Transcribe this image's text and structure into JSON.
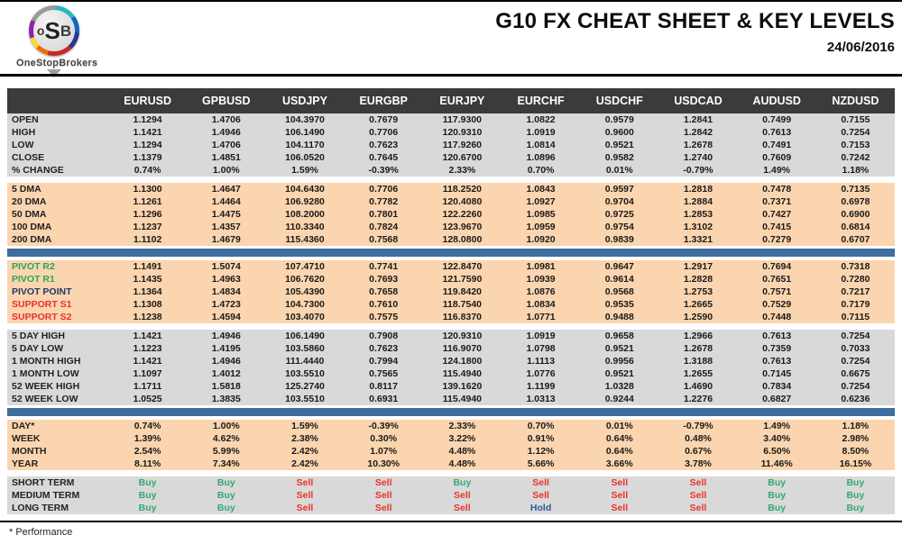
{
  "page": {
    "title": "G10 FX CHEAT SHEET & KEY LEVELS",
    "date": "24/06/2016",
    "footnote": "* Performance"
  },
  "logo": {
    "monogram_o": "o",
    "monogram_s": "S",
    "monogram_b": "B",
    "brand": "OneStopBrokers"
  },
  "colors": {
    "header_bg": "#3b3b3b",
    "section_gray": "#d9d9d9",
    "section_peach": "#fbd5af",
    "divider_blue": "#3e6d9e",
    "buy_green": "#33a873",
    "sell_red": "#ea3429",
    "hold_navy": "#2e5b97",
    "pivot_green": "#27a757",
    "pivot_navy": "#1f3864",
    "support_red": "#e8312b"
  },
  "table": {
    "corner_label": "",
    "columns": [
      "EURUSD",
      "GPBUSD",
      "USDJPY",
      "EURGBP",
      "EURJPY",
      "EURCHF",
      "USDCHF",
      "USDCAD",
      "AUDUSD",
      "NZDUSD"
    ],
    "sections": [
      {
        "id": "ohlc",
        "bg": "gray",
        "divider_after": "gap",
        "rows": [
          {
            "label": "OPEN",
            "values": [
              "1.1294",
              "1.4706",
              "104.3970",
              "0.7679",
              "117.9300",
              "1.0822",
              "0.9579",
              "1.2841",
              "0.7499",
              "0.7155"
            ]
          },
          {
            "label": "HIGH",
            "values": [
              "1.1421",
              "1.4946",
              "106.1490",
              "0.7706",
              "120.9310",
              "1.0919",
              "0.9600",
              "1.2842",
              "0.7613",
              "0.7254"
            ]
          },
          {
            "label": "LOW",
            "values": [
              "1.1294",
              "1.4706",
              "104.1170",
              "0.7623",
              "117.9260",
              "1.0814",
              "0.9521",
              "1.2678",
              "0.7491",
              "0.7153"
            ]
          },
          {
            "label": "CLOSE",
            "values": [
              "1.1379",
              "1.4851",
              "106.0520",
              "0.7645",
              "120.6700",
              "1.0896",
              "0.9582",
              "1.2740",
              "0.7609",
              "0.7242"
            ]
          },
          {
            "label": "% CHANGE",
            "values": [
              "0.74%",
              "1.00%",
              "1.59%",
              "-0.39%",
              "2.33%",
              "0.70%",
              "0.01%",
              "-0.79%",
              "1.49%",
              "1.18%"
            ]
          }
        ]
      },
      {
        "id": "dma",
        "bg": "peach",
        "divider_after": "blue",
        "rows": [
          {
            "label": "5 DMA",
            "values": [
              "1.1300",
              "1.4647",
              "104.6430",
              "0.7706",
              "118.2520",
              "1.0843",
              "0.9597",
              "1.2818",
              "0.7478",
              "0.7135"
            ]
          },
          {
            "label": "20 DMA",
            "values": [
              "1.1261",
              "1.4464",
              "106.9280",
              "0.7782",
              "120.4080",
              "1.0927",
              "0.9704",
              "1.2884",
              "0.7371",
              "0.6978"
            ]
          },
          {
            "label": "50 DMA",
            "values": [
              "1.1296",
              "1.4475",
              "108.2000",
              "0.7801",
              "122.2260",
              "1.0985",
              "0.9725",
              "1.2853",
              "0.7427",
              "0.6900"
            ]
          },
          {
            "label": "100 DMA",
            "values": [
              "1.1237",
              "1.4357",
              "110.3340",
              "0.7824",
              "123.9670",
              "1.0959",
              "0.9754",
              "1.3102",
              "0.7415",
              "0.6814"
            ]
          },
          {
            "label": "200 DMA",
            "values": [
              "1.1102",
              "1.4679",
              "115.4360",
              "0.7568",
              "128.0800",
              "1.0920",
              "0.9839",
              "1.3321",
              "0.7279",
              "0.6707"
            ]
          }
        ]
      },
      {
        "id": "pivots",
        "bg": "peach",
        "divider_after": "gap",
        "rows": [
          {
            "label": "PIVOT R2",
            "labelColor": "green",
            "values": [
              "1.1491",
              "1.5074",
              "107.4710",
              "0.7741",
              "122.8470",
              "1.0981",
              "0.9647",
              "1.2917",
              "0.7694",
              "0.7318"
            ]
          },
          {
            "label": "PIVOT R1",
            "labelColor": "green",
            "values": [
              "1.1435",
              "1.4963",
              "106.7620",
              "0.7693",
              "121.7590",
              "1.0939",
              "0.9614",
              "1.2828",
              "0.7651",
              "0.7280"
            ]
          },
          {
            "label": "PIVOT POINT",
            "labelColor": "navy",
            "values": [
              "1.1364",
              "1.4834",
              "105.4390",
              "0.7658",
              "119.8420",
              "1.0876",
              "0.9568",
              "1.2753",
              "0.7571",
              "0.7217"
            ]
          },
          {
            "label": "SUPPORT S1",
            "labelColor": "red",
            "values": [
              "1.1308",
              "1.4723",
              "104.7300",
              "0.7610",
              "118.7540",
              "1.0834",
              "0.9535",
              "1.2665",
              "0.7529",
              "0.7179"
            ]
          },
          {
            "label": "SUPPORT S2",
            "labelColor": "red",
            "values": [
              "1.1238",
              "1.4594",
              "103.4070",
              "0.7575",
              "116.8370",
              "1.0771",
              "0.9488",
              "1.2590",
              "0.7448",
              "0.7115"
            ]
          }
        ]
      },
      {
        "id": "ranges",
        "bg": "gray",
        "divider_after": "blue",
        "rows": [
          {
            "label": "5 DAY HIGH",
            "values": [
              "1.1421",
              "1.4946",
              "106.1490",
              "0.7908",
              "120.9310",
              "1.0919",
              "0.9658",
              "1.2966",
              "0.7613",
              "0.7254"
            ]
          },
          {
            "label": "5 DAY LOW",
            "values": [
              "1.1223",
              "1.4195",
              "103.5860",
              "0.7623",
              "116.9070",
              "1.0798",
              "0.9521",
              "1.2678",
              "0.7359",
              "0.7033"
            ]
          },
          {
            "label": "1 MONTH HIGH",
            "values": [
              "1.1421",
              "1.4946",
              "111.4440",
              "0.7994",
              "124.1800",
              "1.1113",
              "0.9956",
              "1.3188",
              "0.7613",
              "0.7254"
            ]
          },
          {
            "label": "1 MONTH LOW",
            "values": [
              "1.1097",
              "1.4012",
              "103.5510",
              "0.7565",
              "115.4940",
              "1.0776",
              "0.9521",
              "1.2655",
              "0.7145",
              "0.6675"
            ]
          },
          {
            "label": "52 WEEK HIGH",
            "values": [
              "1.1711",
              "1.5818",
              "125.2740",
              "0.8117",
              "139.1620",
              "1.1199",
              "1.0328",
              "1.4690",
              "0.7834",
              "0.7254"
            ]
          },
          {
            "label": "52 WEEK LOW",
            "values": [
              "1.0525",
              "1.3835",
              "103.5510",
              "0.6931",
              "115.4940",
              "1.0313",
              "0.9244",
              "1.2276",
              "0.6827",
              "0.6236"
            ]
          }
        ]
      },
      {
        "id": "performance",
        "bg": "peach",
        "divider_after": "gap",
        "rows": [
          {
            "label": "DAY*",
            "values": [
              "0.74%",
              "1.00%",
              "1.59%",
              "-0.39%",
              "2.33%",
              "0.70%",
              "0.01%",
              "-0.79%",
              "1.49%",
              "1.18%"
            ]
          },
          {
            "label": "WEEK",
            "values": [
              "1.39%",
              "4.62%",
              "2.38%",
              "0.30%",
              "3.22%",
              "0.91%",
              "0.64%",
              "0.48%",
              "3.40%",
              "2.98%"
            ]
          },
          {
            "label": "MONTH",
            "values": [
              "2.54%",
              "5.99%",
              "2.42%",
              "1.07%",
              "4.48%",
              "1.12%",
              "0.64%",
              "0.67%",
              "6.50%",
              "8.50%"
            ]
          },
          {
            "label": "YEAR",
            "values": [
              "8.11%",
              "7.34%",
              "2.42%",
              "10.30%",
              "4.48%",
              "5.66%",
              "3.66%",
              "3.78%",
              "11.46%",
              "16.15%"
            ]
          }
        ]
      },
      {
        "id": "signals",
        "bg": "gray",
        "type": "signals",
        "divider_after": "none",
        "rows": [
          {
            "label": "SHORT TERM",
            "values": [
              "Buy",
              "Buy",
              "Sell",
              "Sell",
              "Buy",
              "Sell",
              "Sell",
              "Sell",
              "Buy",
              "Buy"
            ]
          },
          {
            "label": "MEDIUM TERM",
            "values": [
              "Buy",
              "Buy",
              "Sell",
              "Sell",
              "Sell",
              "Sell",
              "Sell",
              "Sell",
              "Buy",
              "Buy"
            ]
          },
          {
            "label": "LONG TERM",
            "values": [
              "Buy",
              "Buy",
              "Sell",
              "Sell",
              "Sell",
              "Hold",
              "Sell",
              "Sell",
              "Buy",
              "Buy"
            ]
          }
        ]
      }
    ]
  }
}
